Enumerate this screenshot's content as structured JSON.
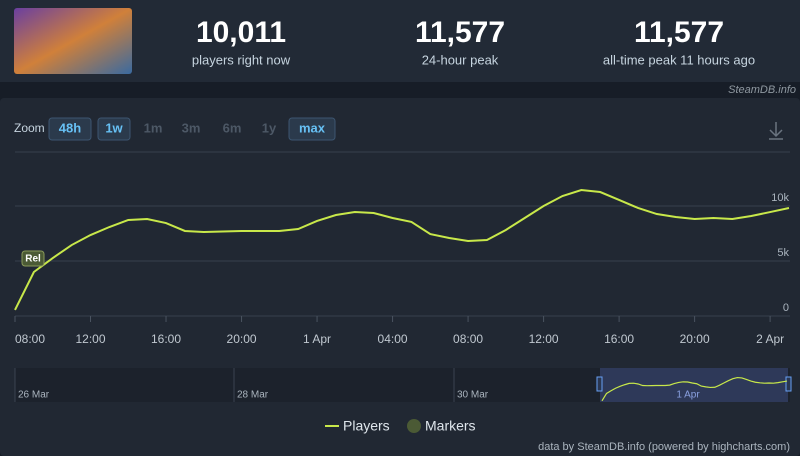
{
  "header": {
    "stats": [
      {
        "value": "10,011",
        "label": "players right now"
      },
      {
        "value": "11,577",
        "label": "24-hour peak"
      },
      {
        "value": "11,577",
        "label": "all-time peak 11 hours ago"
      }
    ],
    "source": "SteamDB.info"
  },
  "zoom": {
    "label": "Zoom",
    "buttons": [
      "48h",
      "1w",
      "1m",
      "3m",
      "6m",
      "1y",
      "max"
    ]
  },
  "chart_data": {
    "type": "line",
    "categories": [
      "08:00",
      null,
      null,
      null,
      "12:00",
      null,
      null,
      null,
      "16:00",
      null,
      null,
      null,
      "20:00",
      null,
      null,
      null,
      "1 Apr",
      null,
      null,
      null,
      "04:00",
      null,
      null,
      null,
      "08:00",
      null,
      null,
      null,
      "12:00",
      null,
      null,
      null,
      "16:00",
      null,
      null,
      null,
      "20:00",
      null,
      null,
      null,
      "2 Apr",
      null
    ],
    "series": [
      {
        "name": "Players",
        "color": "#c8e84a",
        "values": [
          550,
          4000,
          5270,
          6450,
          7360,
          8090,
          8730,
          8820,
          8450,
          7730,
          7640,
          7680,
          7730,
          7730,
          7730,
          7910,
          8640,
          9180,
          9450,
          9360,
          8910,
          8550,
          7450,
          7090,
          6820,
          6910,
          7820,
          8910,
          10000,
          10910,
          11450,
          11270,
          10550,
          9820,
          9270,
          9000,
          8820,
          8910,
          8820,
          9090,
          9450,
          9820
        ]
      }
    ],
    "markers": {
      "name": "Markers",
      "color": "#4b5a35",
      "label": "Rel"
    },
    "ylim": [
      0,
      15000
    ],
    "yticks": [
      0,
      {
        "value": 5000,
        "label": "5k"
      },
      {
        "value": 10000,
        "label": "10k"
      }
    ],
    "grid": true,
    "navigator_labels": [
      "26 Mar",
      "28 Mar",
      "30 Mar",
      "1 Apr"
    ],
    "credits": "data by SteamDB.info (powered by highcharts.com)"
  }
}
